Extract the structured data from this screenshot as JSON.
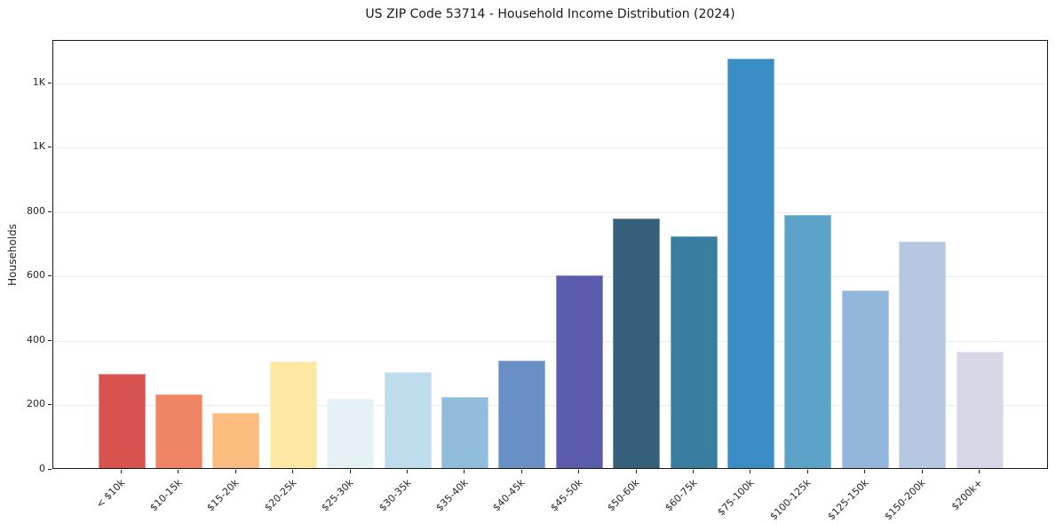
{
  "title": "US ZIP Code 53714 - Household Income Distribution (2024)",
  "chart_data": {
    "type": "bar",
    "title": "US ZIP Code 53714 - Household Income Distribution (2024)",
    "xlabel": "",
    "ylabel": "Households",
    "categories": [
      "< $10k",
      "$10-15k",
      "$15-20k",
      "$20-25k",
      "$25-30k",
      "$30-35k",
      "$35-40k",
      "$40-45k",
      "$45-50k",
      "$50-60k",
      "$60-75k",
      "$75-100k",
      "$100-125k",
      "$125-150k",
      "$150-200k",
      "$200k+"
    ],
    "values": [
      291,
      229,
      172,
      330,
      215,
      299,
      222,
      334,
      598,
      776,
      720,
      1270,
      787,
      551,
      704,
      360
    ],
    "bar_colors": [
      "#d6534e",
      "#f08565",
      "#fabd7d",
      "#fce8a3",
      "#e4f1f6",
      "#bddcec",
      "#90bddc",
      "#6890c6",
      "#5c5cac",
      "#356079",
      "#377ea1",
      "#3a8ec5",
      "#5ba3c9",
      "#92b6d9",
      "#b7c7e1",
      "#d7d7e7"
    ],
    "ylim": [
      0,
      1332
    ],
    "yticks": [
      {
        "value": 0,
        "label": "0"
      },
      {
        "value": 200,
        "label": "200"
      },
      {
        "value": 400,
        "label": "400"
      },
      {
        "value": 600,
        "label": "600"
      },
      {
        "value": 800,
        "label": "800"
      },
      {
        "value": 1000,
        "label": "1K"
      },
      {
        "value": 1200,
        "label": "1K"
      }
    ],
    "grid": "horizontal",
    "legend_position": "none",
    "colors": {
      "spine": "#1a1a1a",
      "gridline": "#ececec",
      "text": "#262626",
      "background": "#ffffff"
    }
  }
}
